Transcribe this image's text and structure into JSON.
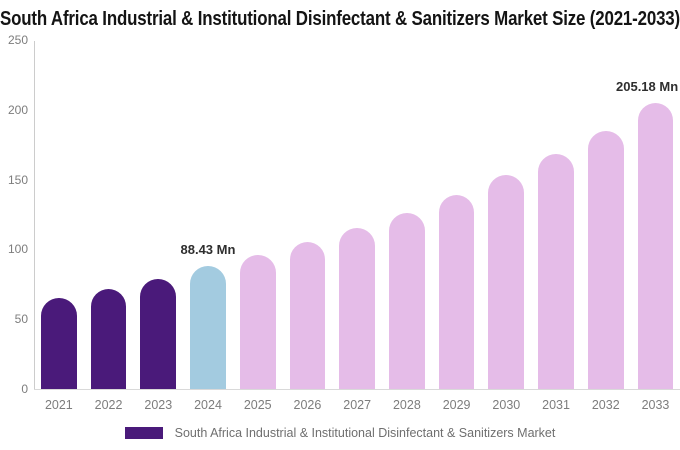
{
  "title": "South Africa Industrial & Institutional Disinfectant & Sanitizers Market Size (2021-2033)",
  "legend": {
    "label": "South Africa Industrial & Institutional Disinfectant & Sanitizers Market",
    "swatch_color": "#4A1A7A"
  },
  "colors": {
    "historical_bar": "#4A1A7A",
    "base_year_bar": "#A3CBE0",
    "forecast_bar": "#E5BCE8",
    "axis_line": "#cccccc",
    "tick_text": "#7d7d7d",
    "title_text": "#141414",
    "annotation_text": "#2e2e2e"
  },
  "chart_data": {
    "type": "bar",
    "title": "South Africa Industrial & Institutional Disinfectant & Sanitizers Market Size (2021-2033)",
    "xlabel": "",
    "ylabel": "",
    "unit": "Mn",
    "categories": [
      "2021",
      "2022",
      "2023",
      "2024",
      "2025",
      "2026",
      "2027",
      "2028",
      "2029",
      "2030",
      "2031",
      "2032",
      "2033"
    ],
    "values": [
      65,
      72,
      79,
      88.43,
      96,
      105,
      115,
      126,
      139,
      153,
      168,
      185,
      205.18
    ],
    "bar_colors": [
      "#4A1A7A",
      "#4A1A7A",
      "#4A1A7A",
      "#A3CBE0",
      "#E5BCE8",
      "#E5BCE8",
      "#E5BCE8",
      "#E5BCE8",
      "#E5BCE8",
      "#E5BCE8",
      "#E5BCE8",
      "#E5BCE8",
      "#E5BCE8"
    ],
    "ylim": [
      0,
      250
    ],
    "yticks": [
      0,
      50,
      100,
      150,
      200,
      250
    ],
    "grid": false,
    "legend_position": "bottom",
    "annotations": [
      {
        "category": "2024",
        "text": "88.43 Mn"
      },
      {
        "category": "2033",
        "text": "205.18 Mn"
      }
    ]
  }
}
